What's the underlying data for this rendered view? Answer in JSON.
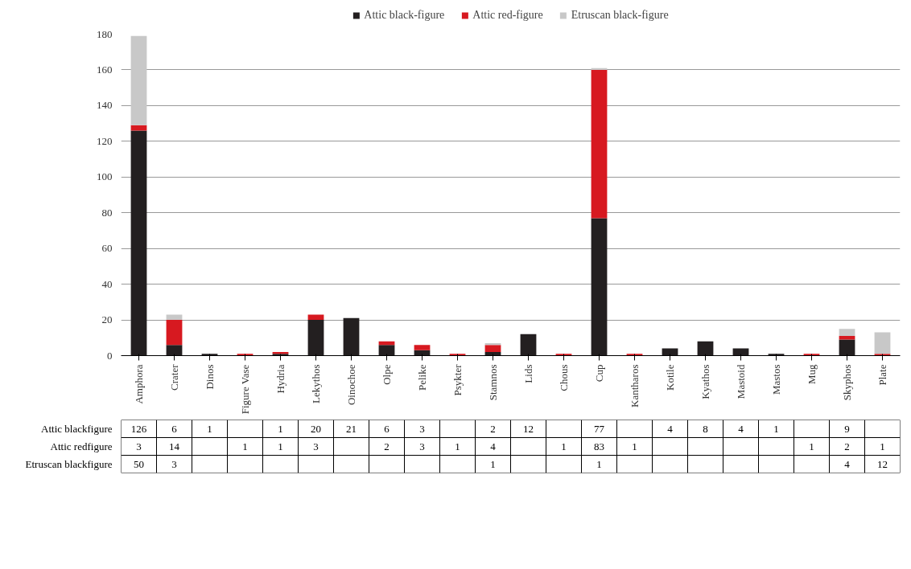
{
  "chart_data": {
    "type": "bar",
    "stacked": true,
    "categories": [
      "Amphora",
      "Crater",
      "Dinos",
      "Figure Vase",
      "Hydria",
      "Lekythos",
      "Oinochoe",
      "Olpe",
      "Pelike",
      "Psykter",
      "Stamnos",
      "Lids",
      "Chous",
      "Cup",
      "Kantharos",
      "Kotile",
      "Kyathos",
      "Mastoid",
      "Mastos",
      "Mug",
      "Skyphos",
      "Plate"
    ],
    "series": [
      {
        "name": "Attic black-figure",
        "color": "#231f20",
        "values": [
          126,
          6,
          1,
          null,
          1,
          20,
          21,
          6,
          3,
          null,
          2,
          12,
          null,
          77,
          null,
          4,
          8,
          4,
          1,
          null,
          9,
          null
        ]
      },
      {
        "name": "Attic red-figure",
        "color": "#d71920",
        "values": [
          3,
          14,
          null,
          1,
          1,
          3,
          null,
          2,
          3,
          1,
          4,
          null,
          1,
          83,
          1,
          null,
          null,
          null,
          null,
          1,
          2,
          1
        ]
      },
      {
        "name": "Etruscan black-figure",
        "color": "#c8c8c8",
        "values": [
          50,
          3,
          null,
          null,
          null,
          null,
          null,
          null,
          null,
          null,
          1,
          null,
          null,
          1,
          null,
          null,
          null,
          null,
          null,
          null,
          4,
          12
        ]
      }
    ],
    "annotations": [
      "Attic blackfigure",
      "Attic redfigure",
      "Etruscan blackfigure"
    ],
    "ylim": [
      0,
      180
    ],
    "yticks": [
      0,
      20,
      40,
      60,
      80,
      100,
      120,
      140,
      160,
      180
    ],
    "grid": "y",
    "legend": "top",
    "data_labels": true
  }
}
